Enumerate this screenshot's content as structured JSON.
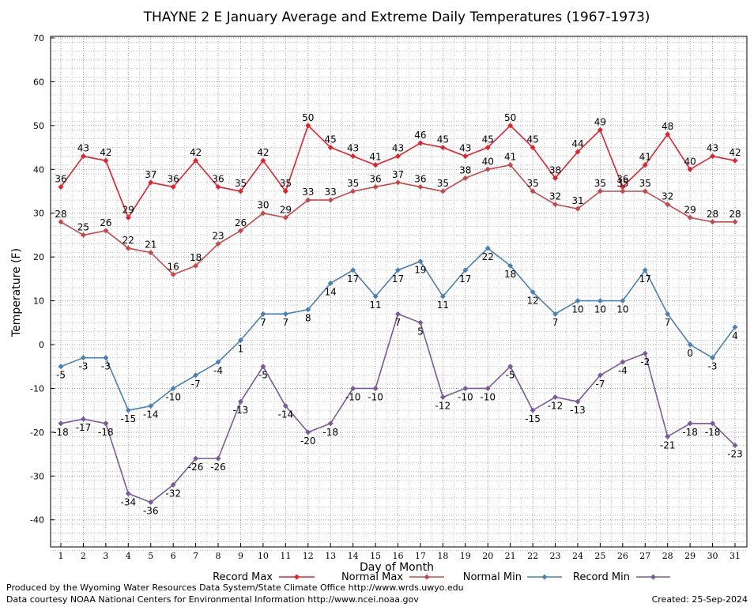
{
  "chart_data": {
    "type": "line",
    "title": "THAYNE 2 E January Average and Extreme Daily Temperatures (1967-1973)",
    "xlabel": "Day of Month",
    "ylabel": "Temperature (F)",
    "ylim": [
      -47,
      70
    ],
    "yticks": [
      -40,
      -30,
      -20,
      -10,
      0,
      10,
      20,
      30,
      40,
      50,
      60,
      70
    ],
    "x": [
      1,
      2,
      3,
      4,
      5,
      6,
      7,
      8,
      9,
      10,
      11,
      12,
      13,
      14,
      15,
      16,
      17,
      18,
      19,
      20,
      21,
      22,
      23,
      24,
      25,
      26,
      27,
      28,
      29,
      30,
      31
    ],
    "grid": true,
    "legend": "bottom",
    "series": [
      {
        "name": "Record Max",
        "color": "#e8202a",
        "values": [
          36,
          43,
          42,
          29,
          37,
          36,
          42,
          36,
          35,
          42,
          35,
          50,
          45,
          43,
          41,
          43,
          46,
          45,
          43,
          45,
          50,
          45,
          38,
          44,
          49,
          36,
          41,
          48,
          40,
          43,
          42
        ],
        "labels": [
          "36",
          "43",
          "42",
          "29",
          "37",
          "36",
          "42",
          "36",
          "35",
          "42",
          "35",
          "50",
          "45",
          "43",
          "41",
          "43",
          "46",
          "45",
          "43",
          "45",
          "50",
          "45",
          "38",
          "44",
          "49",
          "36",
          "41",
          "48",
          "40",
          "43",
          "42"
        ]
      },
      {
        "name": "Normal Max",
        "color": "#c8484a",
        "values": [
          28,
          25,
          26,
          22,
          21,
          16,
          18,
          23,
          26,
          30,
          29,
          33,
          33,
          35,
          36,
          37,
          36,
          35,
          38,
          40,
          41,
          35,
          32,
          31,
          35,
          35,
          35,
          32,
          29,
          28,
          28
        ],
        "labels": [
          "28",
          "25",
          "26",
          "22",
          "21",
          "16",
          "18",
          "23",
          "26",
          "30",
          "29",
          "33",
          "33",
          "35",
          "36",
          "37",
          "36",
          "35",
          "38",
          "40",
          "41",
          "35",
          "32",
          "31",
          "35",
          "35",
          "35",
          "32",
          "29",
          "28",
          "28"
        ]
      },
      {
        "name": "Normal Min",
        "color": "#4a80b4",
        "values": [
          -5,
          -3,
          -3,
          -15,
          -14,
          -10,
          -7,
          -4,
          1,
          7,
          7,
          8,
          14,
          17,
          11,
          17,
          19,
          11,
          17,
          22,
          18,
          12,
          7,
          10,
          10,
          10,
          17,
          7,
          0,
          -3,
          4
        ],
        "labels": [
          "-5",
          "-3",
          "-3",
          "-15",
          "-14",
          "-10",
          "-7",
          "-4",
          "1",
          "7",
          "7",
          "8",
          "14",
          "17",
          "11",
          "17",
          "19",
          "11",
          "17",
          "22",
          "18",
          "12",
          "7",
          "10",
          "10",
          "10",
          "17",
          "7",
          "0",
          "-3",
          "4"
        ]
      },
      {
        "name": "Record Min",
        "color": "#7a5a9a",
        "values": [
          -18,
          -17,
          -18,
          -34,
          -36,
          -32,
          -26,
          -26,
          -13,
          -5,
          -14,
          -20,
          -18,
          -10,
          -10,
          7,
          5,
          -12,
          -10,
          -10,
          -5,
          -15,
          -12,
          -13,
          -7,
          -4,
          -2,
          -21,
          -18,
          -18,
          -23
        ],
        "labels": [
          "-18",
          "-17",
          "-18",
          "-34",
          "-36",
          "-32",
          "-26",
          "-26",
          "-13",
          "-5",
          "-14",
          "-20",
          "-18",
          "-10",
          "-10",
          "7",
          "5",
          "-12",
          "-10",
          "-10",
          "-5",
          "-15",
          "-12",
          "-13",
          "-7",
          "-4",
          "-2",
          "-21",
          "-18",
          "-18",
          "-23"
        ]
      }
    ]
  },
  "footer": {
    "produced_by": "Produced by the Wyoming Water Resources Data System/State Climate Office http://www.wrds.uwyo.edu",
    "courtesy": "Data courtesy NOAA National Centers for Environmental Information http://www.ncei.noaa.gov",
    "created": "Created:  25-Sep-2024"
  }
}
